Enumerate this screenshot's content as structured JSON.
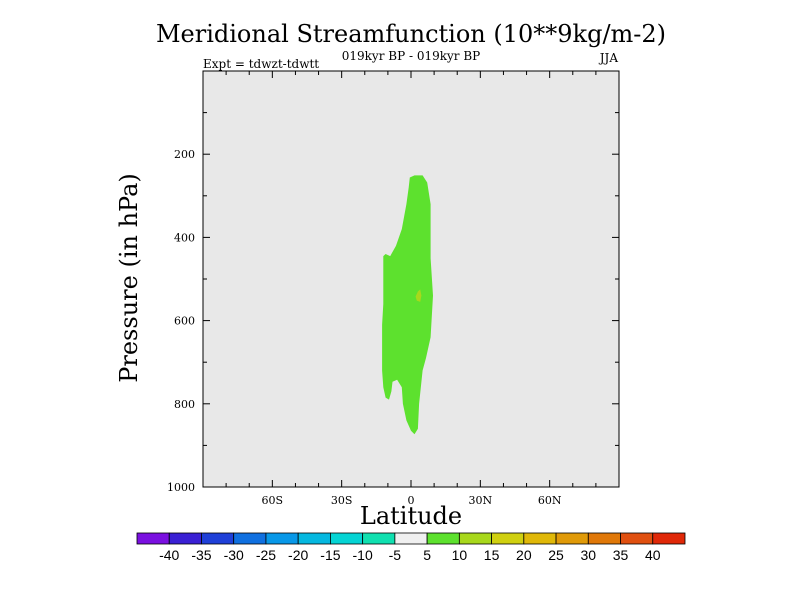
{
  "chart_data": {
    "type": "contour",
    "title": "Meridional Streamfunction (10**9kg/m-2)",
    "subtitle_center": "019kyr BP - 019kyr BP",
    "subtitle_left": "Expt = tdwzt-tdwtt",
    "subtitle_right": "JJA",
    "xlabel": "Latitude",
    "ylabel": "Pressure (in hPa)",
    "xlim": [
      -90,
      90
    ],
    "ylim": [
      0,
      1000
    ],
    "y_inverted": true,
    "xticks": [
      {
        "value": -60,
        "label": "60S"
      },
      {
        "value": -30,
        "label": "30S"
      },
      {
        "value": 0,
        "label": "0"
      },
      {
        "value": 30,
        "label": "30N"
      },
      {
        "value": 60,
        "label": "60N"
      }
    ],
    "yticks": [
      {
        "value": 200,
        "label": "200"
      },
      {
        "value": 400,
        "label": "400"
      },
      {
        "value": 600,
        "label": "600"
      },
      {
        "value": 800,
        "label": "800"
      },
      {
        "value": 1000,
        "label": "1000"
      }
    ],
    "background_color": "#e8e8e8",
    "regions": [
      {
        "level_range": "5 to 10",
        "color": "#5de12e",
        "outline": [
          [
            -0.5,
            256
          ],
          [
            1.5,
            251
          ],
          [
            5,
            251
          ],
          [
            7,
            268
          ],
          [
            8.5,
            320
          ],
          [
            8.5,
            450
          ],
          [
            9.5,
            540
          ],
          [
            8.5,
            640
          ],
          [
            6.5,
            690
          ],
          [
            5,
            720
          ],
          [
            3.5,
            800
          ],
          [
            3,
            860
          ],
          [
            1.5,
            873
          ],
          [
            0,
            865
          ],
          [
            -2,
            840
          ],
          [
            -3.5,
            800
          ],
          [
            -4,
            760
          ],
          [
            -6,
            742
          ],
          [
            -8,
            747
          ],
          [
            -8.5,
            770
          ],
          [
            -9.5,
            790
          ],
          [
            -11,
            785
          ],
          [
            -12,
            760
          ],
          [
            -12.5,
            720
          ],
          [
            -12.5,
            660
          ],
          [
            -12.5,
            610
          ],
          [
            -12,
            560
          ],
          [
            -12,
            500
          ],
          [
            -12,
            445
          ],
          [
            -11,
            440
          ],
          [
            -9,
            445
          ],
          [
            -6.5,
            420
          ],
          [
            -4,
            380
          ],
          [
            -2,
            320
          ],
          [
            -1,
            280
          ]
        ]
      },
      {
        "level_range": "10 to 15",
        "color": "#a8d81c",
        "outline": [
          [
            3,
            530
          ],
          [
            4,
            525
          ],
          [
            4.5,
            540
          ],
          [
            4,
            555
          ],
          [
            2.5,
            552
          ],
          [
            2,
            542
          ]
        ]
      }
    ],
    "colorbar": {
      "colors": [
        "#7a10e0",
        "#3a20d4",
        "#1f40d8",
        "#1070e0",
        "#0898e8",
        "#05b8e0",
        "#05d4d4",
        "#10e0b0",
        "#f0f0f0",
        "#5de12e",
        "#a8d81c",
        "#d0d010",
        "#e0b808",
        "#e09a08",
        "#e07808",
        "#e05010",
        "#e02808"
      ],
      "labels": [
        "-40",
        "-35",
        "-30",
        "-25",
        "-20",
        "-15",
        "-10",
        "-5",
        "5",
        "10",
        "15",
        "20",
        "25",
        "30",
        "35",
        "40"
      ]
    }
  }
}
